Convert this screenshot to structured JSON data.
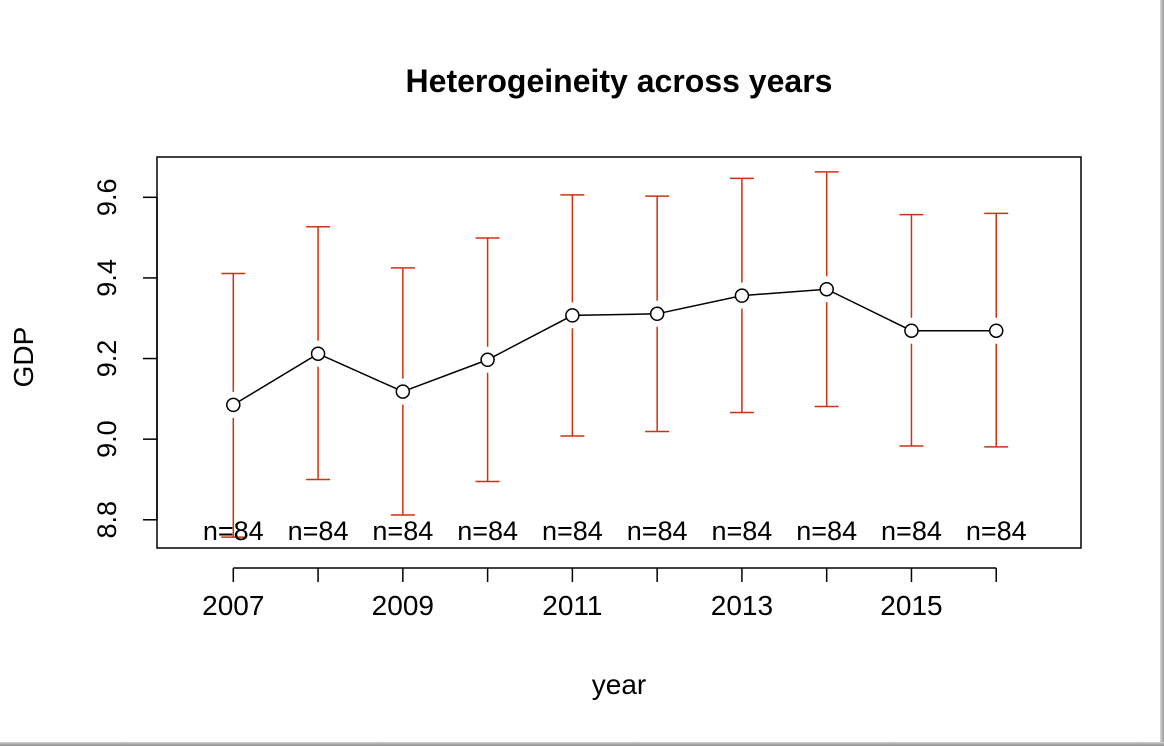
{
  "chart_data": {
    "type": "line",
    "title": "Heterogeineity across years",
    "xlabel": "year",
    "ylabel": "GDP",
    "x": [
      2007,
      2008,
      2009,
      2010,
      2011,
      2012,
      2013,
      2014,
      2015,
      2016
    ],
    "x_tick_labels": [
      "2007",
      "2009",
      "2011",
      "2013",
      "2015"
    ],
    "y_ticks": [
      8.8,
      9.0,
      9.2,
      9.4,
      9.6
    ],
    "y_tick_labels": [
      "8.8",
      "9.0",
      "9.2",
      "9.4",
      "9.6"
    ],
    "xlim": [
      2006.1,
      2017.0
    ],
    "ylim": [
      8.73,
      9.7
    ],
    "series": [
      {
        "values": [
          9.085,
          9.212,
          9.118,
          9.197,
          9.307,
          9.311,
          9.356,
          9.372,
          9.269,
          9.269
        ],
        "lower": [
          8.757,
          8.9,
          8.812,
          8.895,
          9.008,
          9.019,
          9.066,
          9.081,
          8.983,
          8.981
        ],
        "upper": [
          9.411,
          9.527,
          9.425,
          9.499,
          9.606,
          9.603,
          9.647,
          9.663,
          9.557,
          9.56
        ],
        "line_color": "#000000",
        "errorbar_color": "#cc3311"
      }
    ],
    "annotations": [
      "n=84",
      "n=84",
      "n=84",
      "n=84",
      "n=84",
      "n=84",
      "n=84",
      "n=84",
      "n=84",
      "n=84"
    ],
    "grid": false,
    "legend": "none"
  }
}
